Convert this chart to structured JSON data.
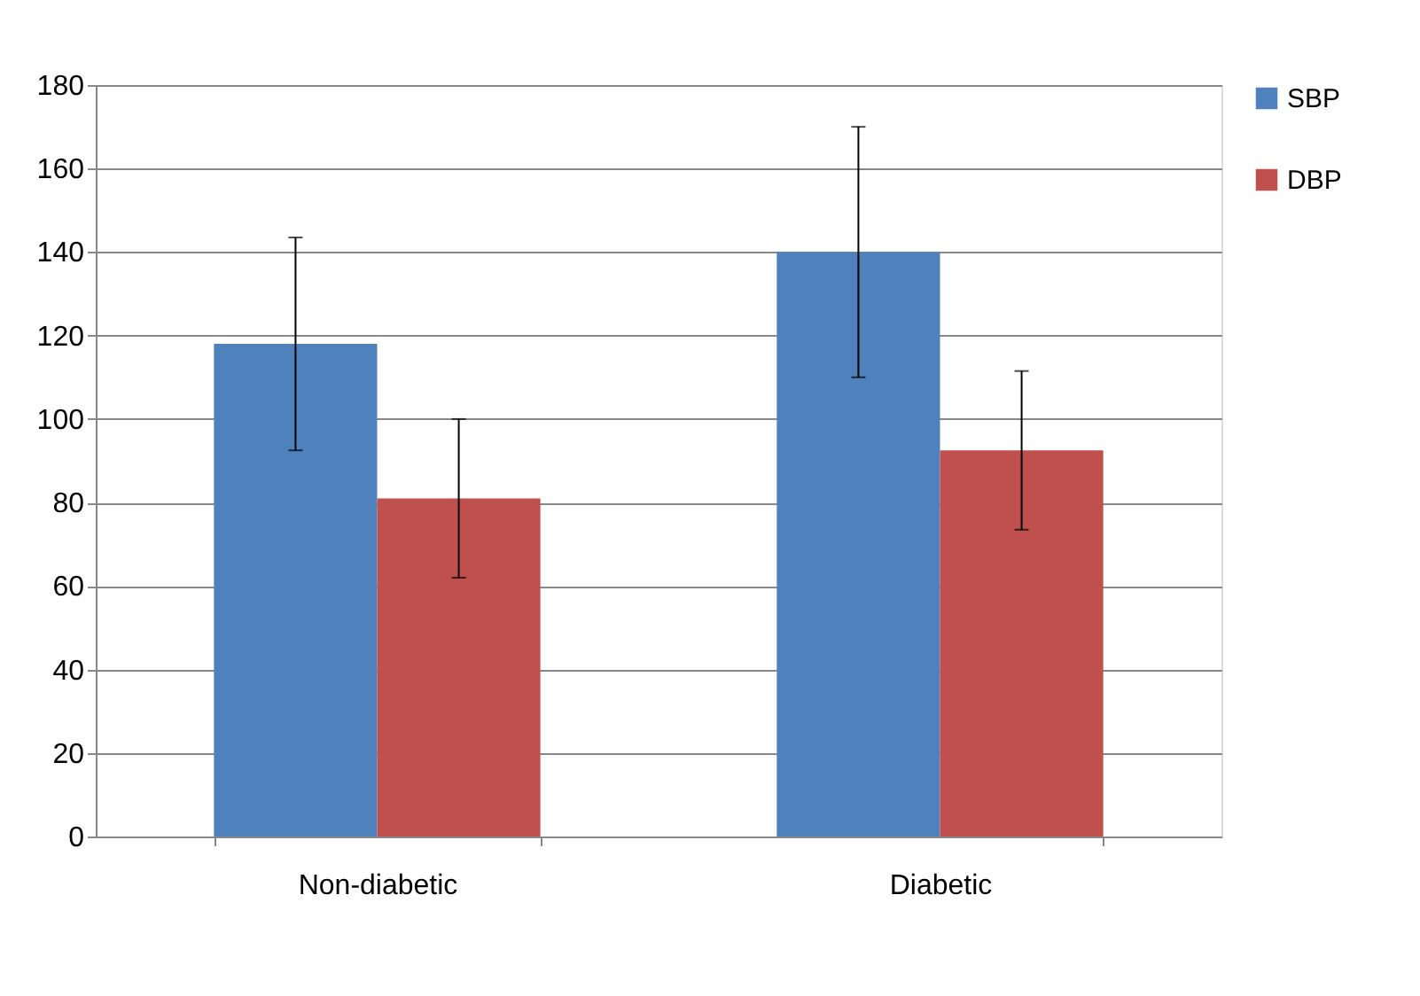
{
  "chart_data": {
    "type": "bar",
    "categories": [
      "Non-diabetic",
      "Diabetic"
    ],
    "series": [
      {
        "name": "SBP",
        "color": "#4f81bd",
        "values": [
          118,
          140
        ],
        "errors": [
          25.5,
          30
        ]
      },
      {
        "name": "DBP",
        "color": "#c0504d",
        "values": [
          81,
          92.5
        ],
        "errors": [
          19,
          19
        ]
      }
    ],
    "ylim": [
      0,
      180
    ],
    "yticks": [
      0,
      20,
      40,
      60,
      80,
      100,
      120,
      140,
      160,
      180
    ],
    "grid": "y",
    "legend": "right"
  }
}
